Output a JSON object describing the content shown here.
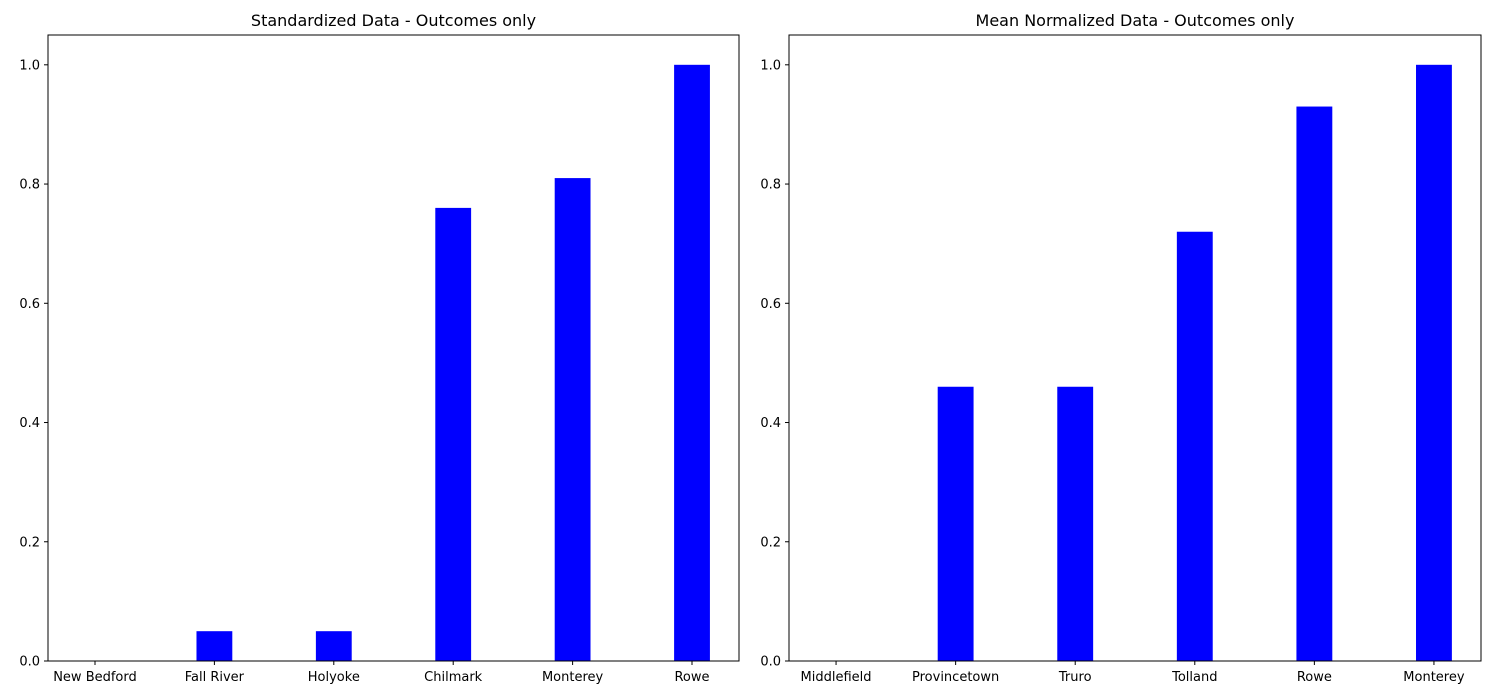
{
  "chart_data": [
    {
      "type": "bar",
      "title": "Standardized Data - Outcomes only",
      "xlabel": "",
      "ylabel": "",
      "categories": [
        "New Bedford",
        "Fall River",
        "Holyoke",
        "Chilmark",
        "Monterey",
        "Rowe"
      ],
      "values": [
        0.0,
        0.05,
        0.05,
        0.76,
        0.81,
        1.0
      ],
      "ylim": [
        0,
        1.05
      ],
      "yticks": [
        "0.0",
        "0.2",
        "0.4",
        "0.6",
        "0.8",
        "1.0"
      ],
      "bar_color": "#0000ff",
      "grid": false,
      "legend": "none"
    },
    {
      "type": "bar",
      "title": "Mean Normalized Data - Outcomes only",
      "xlabel": "",
      "ylabel": "",
      "categories": [
        "Middlefield",
        "Provincetown",
        "Truro",
        "Tolland",
        "Rowe",
        "Monterey"
      ],
      "values": [
        0.0,
        0.46,
        0.46,
        0.72,
        0.93,
        1.0
      ],
      "ylim": [
        0,
        1.05
      ],
      "yticks": [
        "0.0",
        "0.2",
        "0.4",
        "0.6",
        "0.8",
        "1.0"
      ],
      "bar_color": "#0000ff",
      "grid": false,
      "legend": "none"
    }
  ]
}
